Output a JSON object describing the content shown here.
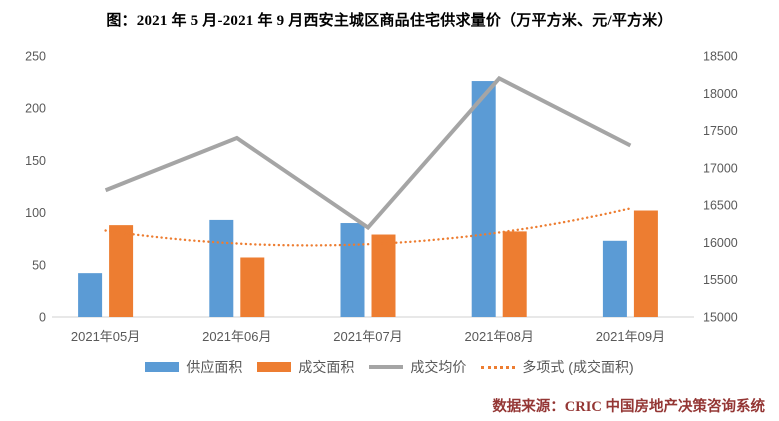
{
  "title": "图：2021 年 5 月-2021 年 9 月西安主城区商品住宅供求量价（万平方米、元/平方米）",
  "source": "数据来源：CRIC 中国房地产决策咨询系统",
  "colors": {
    "supply_bar": "#5B9BD5",
    "deal_bar": "#ED7D31",
    "price_line": "#A5A5A5",
    "trend_dotted": "#ED7D31",
    "axis_text": "#595959",
    "axis_line": "#D9D9D9",
    "title_text": "#000000",
    "source_text": "#943634"
  },
  "chart_data": {
    "type": "bar",
    "subtype": "combo bar+line, dual axis",
    "categories": [
      "2021年05月",
      "2021年06月",
      "2021年07月",
      "2021年08月",
      "2021年09月"
    ],
    "series": [
      {
        "name": "供应面积",
        "type": "bar",
        "axis": "left",
        "color": "#5B9BD5",
        "values": [
          42,
          93,
          90,
          226,
          73
        ]
      },
      {
        "name": "成交面积",
        "type": "bar",
        "axis": "left",
        "color": "#ED7D31",
        "values": [
          88,
          57,
          79,
          82,
          102
        ]
      },
      {
        "name": "成交均价",
        "type": "line",
        "axis": "right",
        "color": "#A5A5A5",
        "values": [
          16700,
          17400,
          16200,
          18200,
          17300
        ]
      },
      {
        "name": "多项式 (成交面积)",
        "type": "poly-trend",
        "axis": "left",
        "color": "#ED7D31",
        "fit_of": "成交面积",
        "values": [
          83,
          70,
          70,
          81,
          104
        ]
      }
    ],
    "left_axis": {
      "min": 0,
      "max": 250,
      "step": 50,
      "ticks": [
        0,
        50,
        100,
        150,
        200,
        250
      ]
    },
    "right_axis": {
      "min": 15000,
      "max": 18500,
      "step": 500,
      "ticks": [
        15000,
        15500,
        16000,
        16500,
        17000,
        17500,
        18000,
        18500
      ]
    },
    "grid": false,
    "legend_position": "bottom"
  }
}
